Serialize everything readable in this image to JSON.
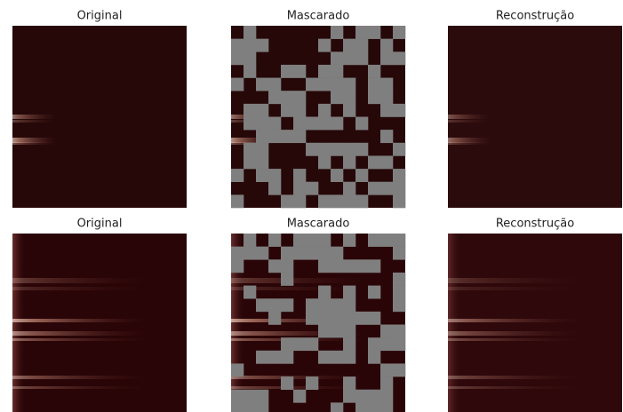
{
  "rows": [
    {
      "panels": [
        {
          "title": "Original"
        },
        {
          "title": "Mascarado"
        },
        {
          "title": "Reconstrução"
        }
      ]
    },
    {
      "panels": [
        {
          "title": "Original"
        },
        {
          "title": "Mascarado"
        },
        {
          "title": "Reconstrução"
        }
      ]
    }
  ]
}
